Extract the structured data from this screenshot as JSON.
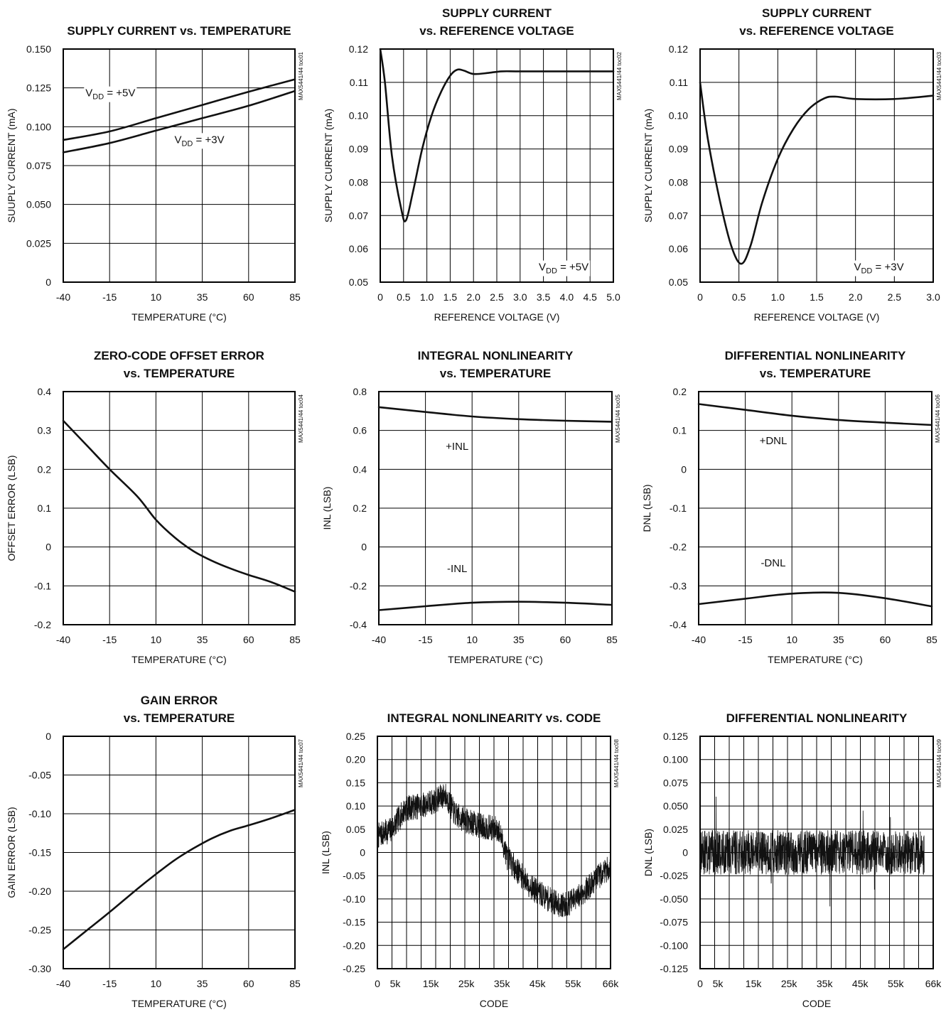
{
  "page": {
    "figure_count": 9
  },
  "chart_data": [
    {
      "id": "toc01",
      "type": "line",
      "title": [
        "SUPPLY CURRENT vs. TEMPERATURE"
      ],
      "xlabel": "TEMPERATURE (°C)",
      "ylabel": "SUUPLY CURRENT (mA)",
      "side_label": "MAX5441/44 toc01",
      "xlim": [
        -40,
        85
      ],
      "ylim": [
        0,
        0.15
      ],
      "xticks": [
        -40,
        -15,
        10,
        35,
        60,
        85
      ],
      "xtick_labels": [
        "-40",
        "-15",
        "10",
        "35",
        "60",
        "85"
      ],
      "yticks": [
        0,
        0.025,
        0.05,
        0.075,
        0.1,
        0.125,
        0.15
      ],
      "ytick_labels": [
        "0",
        "0.025",
        "0.050",
        "0.075",
        "0.100",
        "0.125",
        "0.150"
      ],
      "grid": true,
      "series": [
        {
          "name": "VDD = +5V",
          "x": [
            -40,
            -15,
            10,
            35,
            60,
            85
          ],
          "y": [
            0.0915,
            0.097,
            0.1055,
            0.114,
            0.1225,
            0.1305
          ]
        },
        {
          "name": "VDD = +3V",
          "x": [
            -40,
            -15,
            10,
            35,
            60,
            85
          ],
          "y": [
            0.0835,
            0.0895,
            0.0975,
            0.1055,
            0.1135,
            0.123
          ]
        }
      ],
      "annotations": [
        {
          "main": "V",
          "sub": "DD",
          "rest": " = +5V",
          "x": -28,
          "y": 0.1195
        },
        {
          "main": "V",
          "sub": "DD",
          "rest": " = +3V",
          "x": 20,
          "y": 0.0895
        }
      ]
    },
    {
      "id": "toc02",
      "type": "line",
      "title": [
        "SUPPLY CURRENT",
        "vs. REFERENCE VOLTAGE"
      ],
      "xlabel": "REFERENCE VOLTAGE (V)",
      "ylabel": "SUPPLY CURRENT (mA)",
      "side_label": "MAX5441/44 toc02",
      "xlim": [
        0,
        5
      ],
      "ylim": [
        0.05,
        0.12
      ],
      "xticks": [
        0,
        0.5,
        1,
        1.5,
        2,
        2.5,
        3,
        3.5,
        4,
        4.5,
        5
      ],
      "xtick_labels": [
        "0",
        "0.5",
        "1.0",
        "1.5",
        "2.0",
        "2.5",
        "3.0",
        "3.5",
        "4.0",
        "4.5",
        "5.0"
      ],
      "yticks": [
        0.05,
        0.06,
        0.07,
        0.08,
        0.09,
        0.1,
        0.11,
        0.12
      ],
      "ytick_labels": [
        "0.05",
        "0.06",
        "0.07",
        "0.08",
        "0.09",
        "0.10",
        "0.11",
        "0.12"
      ],
      "grid": true,
      "series": [
        {
          "name": "VDD = +5V",
          "x": [
            0,
            0.1,
            0.25,
            0.45,
            0.55,
            0.7,
            0.9,
            1.1,
            1.3,
            1.5,
            1.65,
            1.8,
            2.0,
            2.3,
            2.6,
            3.0,
            4.0,
            5.0
          ],
          "y": [
            0.12,
            0.11,
            0.088,
            0.072,
            0.0685,
            0.077,
            0.09,
            0.1,
            0.107,
            0.112,
            0.1138,
            0.1135,
            0.1125,
            0.1128,
            0.1133,
            0.1133,
            0.1133,
            0.1133
          ]
        }
      ],
      "annotations": [
        {
          "main": "V",
          "sub": "DD",
          "rest": " = +5V",
          "x": 3.4,
          "y": 0.0535
        }
      ]
    },
    {
      "id": "toc03",
      "type": "line",
      "title": [
        "SUPPLY CURRENT",
        "vs. REFERENCE VOLTAGE"
      ],
      "xlabel": "REFERENCE VOLTAGE (V)",
      "ylabel": "SUPPLY CURRENT (mA)",
      "side_label": "MAX5441/44 toc03",
      "xlim": [
        0,
        3
      ],
      "ylim": [
        0.05,
        0.12
      ],
      "xticks": [
        0,
        0.5,
        1,
        1.5,
        2,
        2.5,
        3
      ],
      "xtick_labels": [
        "0",
        "0.5",
        "1.0",
        "1.5",
        "2.0",
        "2.5",
        "3.0"
      ],
      "yticks": [
        0.05,
        0.06,
        0.07,
        0.08,
        0.09,
        0.1,
        0.11,
        0.12
      ],
      "ytick_labels": [
        "0.05",
        "0.06",
        "0.07",
        "0.08",
        "0.09",
        "0.10",
        "0.11",
        "0.12"
      ],
      "grid": true,
      "series": [
        {
          "name": "VDD = +3V",
          "x": [
            0,
            0.1,
            0.25,
            0.4,
            0.53,
            0.65,
            0.8,
            1.0,
            1.2,
            1.4,
            1.6,
            1.75,
            2.0,
            2.5,
            3.0
          ],
          "y": [
            0.11,
            0.093,
            0.075,
            0.061,
            0.0555,
            0.061,
            0.074,
            0.087,
            0.096,
            0.102,
            0.1052,
            0.1057,
            0.105,
            0.105,
            0.106
          ]
        }
      ],
      "annotations": [
        {
          "main": "V",
          "sub": "DD",
          "rest": " = +3V",
          "x": 1.98,
          "y": 0.0535
        }
      ]
    },
    {
      "id": "toc04",
      "type": "line",
      "title": [
        "ZERO-CODE OFFSET ERROR",
        "vs. TEMPERATURE"
      ],
      "xlabel": "TEMPERATURE (°C)",
      "ylabel": "OFFSET ERROR (LSB)",
      "side_label": "MAX5441/44 toc04",
      "xlim": [
        -40,
        85
      ],
      "ylim": [
        -0.2,
        0.4
      ],
      "xticks": [
        -40,
        -15,
        10,
        35,
        60,
        85
      ],
      "xtick_labels": [
        "-40",
        "-15",
        "10",
        "35",
        "60",
        "85"
      ],
      "yticks": [
        -0.2,
        -0.1,
        0,
        0.1,
        0.2,
        0.3,
        0.4
      ],
      "ytick_labels": [
        "-0.2",
        "-0.1",
        "0",
        "0.1",
        "0.2",
        "0.3",
        "0.4"
      ],
      "grid": true,
      "series": [
        {
          "name": "",
          "x": [
            -40,
            -27,
            -15,
            0,
            10,
            20,
            30,
            40,
            50,
            60,
            72,
            85
          ],
          "y": [
            0.325,
            0.26,
            0.2,
            0.13,
            0.07,
            0.025,
            -0.01,
            -0.035,
            -0.055,
            -0.072,
            -0.09,
            -0.115
          ]
        }
      ],
      "annotations": []
    },
    {
      "id": "toc05",
      "type": "line",
      "title": [
        "INTEGRAL NONLINEARITY",
        "vs. TEMPERATURE"
      ],
      "xlabel": "TEMPERATURE (°C)",
      "ylabel": "INL (LSB)",
      "side_label": "MAX5441/44 toc05",
      "xlim": [
        -40,
        85
      ],
      "ylim": [
        -0.4,
        0.8
      ],
      "xticks": [
        -40,
        -15,
        10,
        35,
        60,
        85
      ],
      "xtick_labels": [
        "-40",
        "-15",
        "10",
        "35",
        "60",
        "85"
      ],
      "yticks": [
        -0.4,
        -0.2,
        0,
        0.2,
        0.4,
        0.6,
        0.8
      ],
      "ytick_labels": [
        "-0.4",
        "-0.2",
        "0",
        "0.2",
        "0.4",
        "0.6",
        "0.8"
      ],
      "grid": true,
      "series": [
        {
          "name": "+INL",
          "x": [
            -40,
            -15,
            10,
            35,
            60,
            85
          ],
          "y": [
            0.72,
            0.695,
            0.672,
            0.658,
            0.65,
            0.645
          ]
        },
        {
          "name": "-INL",
          "x": [
            -40,
            -15,
            10,
            35,
            60,
            85
          ],
          "y": [
            -0.325,
            -0.305,
            -0.287,
            -0.282,
            -0.287,
            -0.298
          ]
        }
      ],
      "annotations": [
        {
          "main": "+INL",
          "sub": "",
          "rest": "",
          "x": 2,
          "y": 0.5
        },
        {
          "main": "-INL",
          "sub": "",
          "rest": "",
          "x": 2,
          "y": -0.13
        }
      ]
    },
    {
      "id": "toc06",
      "type": "line",
      "title": [
        "DIFFERENTIAL NONLINEARITY",
        "vs. TEMPERATURE"
      ],
      "xlabel": "TEMPERATURE (°C)",
      "ylabel": "DNL (LSB)",
      "side_label": "MAX5441/44 toc06",
      "xlim": [
        -40,
        85
      ],
      "ylim": [
        -0.4,
        0.2
      ],
      "xticks": [
        -40,
        -15,
        10,
        35,
        60,
        85
      ],
      "xtick_labels": [
        "-40",
        "-15",
        "10",
        "35",
        "60",
        "85"
      ],
      "yticks": [
        -0.4,
        -0.3,
        -0.2,
        -0.1,
        0,
        0.1,
        0.2
      ],
      "ytick_labels": [
        "-0.4",
        "-0.3",
        "-0.2",
        "-0.1",
        "0",
        "0.1",
        "0.2"
      ],
      "grid": true,
      "series": [
        {
          "name": "+DNL",
          "x": [
            -40,
            -15,
            10,
            35,
            60,
            85
          ],
          "y": [
            0.168,
            0.153,
            0.138,
            0.127,
            0.12,
            0.114
          ]
        },
        {
          "name": "-DNL",
          "x": [
            -40,
            -15,
            10,
            35,
            60,
            85
          ],
          "y": [
            -0.347,
            -0.333,
            -0.32,
            -0.318,
            -0.332,
            -0.353
          ]
        }
      ],
      "annotations": [
        {
          "main": "+DNL",
          "sub": "",
          "rest": "",
          "x": 0,
          "y": 0.065
        },
        {
          "main": "-DNL",
          "sub": "",
          "rest": "",
          "x": 0,
          "y": -0.25
        }
      ]
    },
    {
      "id": "toc07",
      "type": "line",
      "title": [
        "GAIN ERROR",
        "vs. TEMPERATURE"
      ],
      "xlabel": "TEMPERATURE (°C)",
      "ylabel": "GAIN ERROR (LSB)",
      "side_label": "MAX5441/44 toc07",
      "xlim": [
        -40,
        85
      ],
      "ylim": [
        -0.3,
        0
      ],
      "xticks": [
        -40,
        -15,
        10,
        35,
        60,
        85
      ],
      "xtick_labels": [
        "-40",
        "-15",
        "10",
        "35",
        "60",
        "85"
      ],
      "yticks": [
        -0.3,
        -0.25,
        -0.2,
        -0.15,
        -0.1,
        -0.05,
        0
      ],
      "ytick_labels": [
        "-0.30",
        "-0.25",
        "-0.20",
        "-0.15",
        "-0.10",
        "-0.05",
        "0"
      ],
      "grid": true,
      "series": [
        {
          "name": "",
          "x": [
            -40,
            -27,
            -15,
            0,
            10,
            20,
            30,
            40,
            50,
            60,
            72,
            85
          ],
          "y": [
            -0.275,
            -0.25,
            -0.227,
            -0.197,
            -0.178,
            -0.16,
            -0.145,
            -0.132,
            -0.122,
            -0.115,
            -0.106,
            -0.095
          ]
        }
      ],
      "annotations": []
    },
    {
      "id": "toc08",
      "type": "line",
      "title": [
        "INTEGRAL NONLINEARITY vs. CODE"
      ],
      "xlabel": "CODE",
      "ylabel": "INL (LSB)",
      "side_label": "MAX5441/44 toc08",
      "xlim": [
        0,
        65536
      ],
      "ylim": [
        -0.25,
        0.25
      ],
      "xticks": [
        0,
        5000,
        15000,
        25000,
        35000,
        45000,
        55000,
        65536
      ],
      "xtick_labels": [
        "0",
        "5k",
        "15k",
        "25k",
        "35k",
        "45k",
        "55k",
        "66k"
      ],
      "yticks": [
        -0.25,
        -0.2,
        -0.15,
        -0.1,
        -0.05,
        0,
        0.05,
        0.1,
        0.15,
        0.2,
        0.25
      ],
      "ytick_labels": [
        "-0.25",
        "-0.20",
        "-0.15",
        "-0.10",
        "-0.05",
        "0",
        "0.05",
        "0.10",
        "0.15",
        "0.20",
        "0.25"
      ],
      "grid": true,
      "grid_divisions_x": 16,
      "series": [
        {
          "name": "",
          "noise_amplitude": 0.028,
          "seed": 7,
          "x": [
            0,
            4000,
            8000,
            12000,
            16000,
            19000,
            22000,
            26000,
            30000,
            34000,
            36500,
            40000,
            44000,
            48000,
            52000,
            56000,
            60000,
            63000,
            65536
          ],
          "y": [
            0.035,
            0.05,
            0.095,
            0.1,
            0.11,
            0.125,
            0.08,
            0.065,
            0.055,
            0.05,
            -0.01,
            -0.045,
            -0.08,
            -0.1,
            -0.115,
            -0.1,
            -0.07,
            -0.045,
            -0.03
          ]
        }
      ],
      "annotations": []
    },
    {
      "id": "toc09",
      "type": "line",
      "title": [
        "DIFFERENTIAL NONLINEARITY"
      ],
      "xlabel": "CODE",
      "ylabel": "DNL (LSB)",
      "side_label": "MAX5441/44 toc09",
      "xlim": [
        0,
        65536
      ],
      "ylim": [
        -0.125,
        0.125
      ],
      "xticks": [
        0,
        5000,
        15000,
        25000,
        35000,
        45000,
        55000,
        65536
      ],
      "xtick_labels": [
        "0",
        "5k",
        "15k",
        "25k",
        "35k",
        "45k",
        "55k",
        "66k"
      ],
      "yticks": [
        -0.125,
        -0.1,
        -0.075,
        -0.05,
        -0.025,
        0,
        0.025,
        0.05,
        0.075,
        0.1,
        0.125
      ],
      "ytick_labels": [
        "-0.125",
        "-0.100",
        "-0.075",
        "-0.050",
        "-0.025",
        "0",
        "0.025",
        "0.050",
        "0.075",
        "0.100",
        "0.125"
      ],
      "grid": true,
      "grid_divisions_x": 16,
      "series": [
        {
          "name": "",
          "noise_amplitude": 0.024,
          "seed": 13,
          "x": [
            0,
            63000
          ],
          "y": [
            0,
            0
          ],
          "spikes": [
            [
              4500,
              0.06
            ],
            [
              36500,
              -0.058
            ],
            [
              45800,
              0.045
            ],
            [
              49000,
              -0.04
            ],
            [
              20000,
              -0.033
            ],
            [
              53500,
              0.038
            ]
          ]
        }
      ],
      "annotations": []
    }
  ]
}
